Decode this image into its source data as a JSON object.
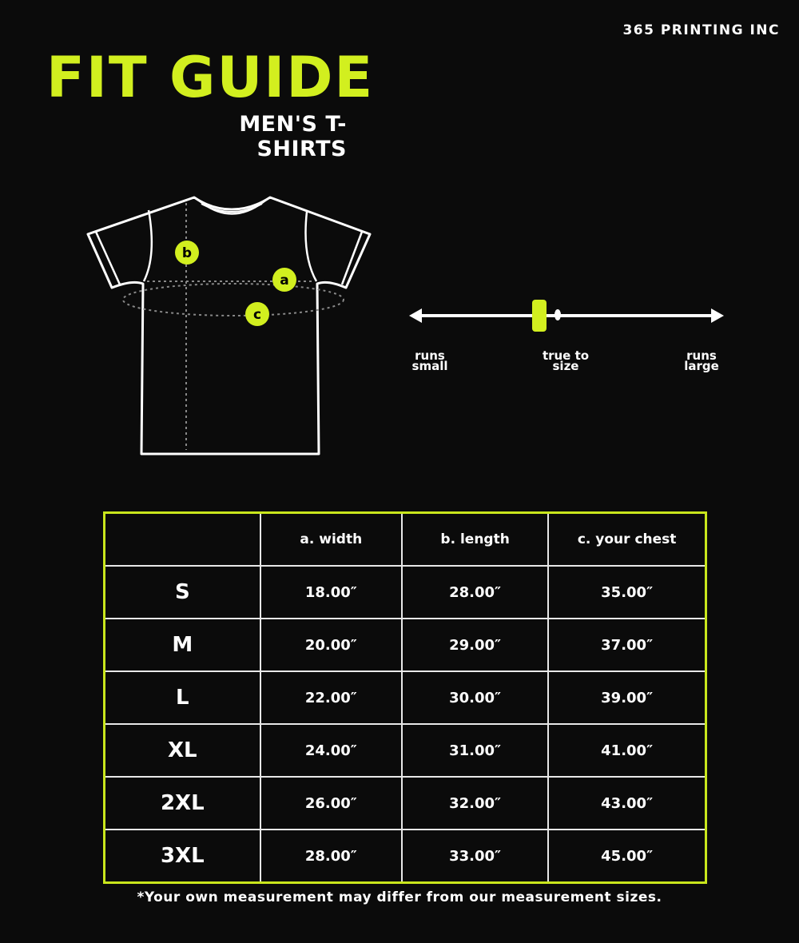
{
  "brand": "365 PRINTING INC",
  "title": "FIT GUIDE",
  "subtitle": "MEN'S T-SHIRTS",
  "colors": {
    "accent": "#d2ef1f",
    "background": "#0b0b0b",
    "line": "#ffffff"
  },
  "diagram": {
    "markers": [
      "a",
      "b",
      "c"
    ]
  },
  "fit_scale": {
    "labels": {
      "left": [
        "runs",
        "small"
      ],
      "center": [
        "true to",
        "size"
      ],
      "right": [
        "runs",
        "large"
      ]
    },
    "indicator_position": 0.41
  },
  "table": {
    "headers": [
      "",
      "a. width",
      "b. length",
      "c. your chest"
    ],
    "rows": [
      [
        "S",
        "18.00″",
        "28.00″",
        "35.00″"
      ],
      [
        "M",
        "20.00″",
        "29.00″",
        "37.00″"
      ],
      [
        "L",
        "22.00″",
        "30.00″",
        "39.00″"
      ],
      [
        "XL",
        "24.00″",
        "31.00″",
        "41.00″"
      ],
      [
        "2XL",
        "26.00″",
        "32.00″",
        "43.00″"
      ],
      [
        "3XL",
        "28.00″",
        "33.00″",
        "45.00″"
      ]
    ]
  },
  "note": "*Your own measurement may differ from our measurement sizes."
}
